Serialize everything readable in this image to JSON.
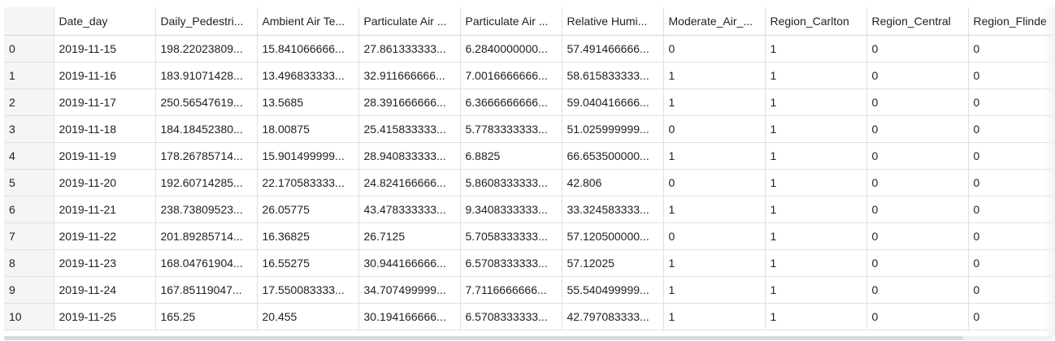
{
  "columns": [
    "",
    "Date_day",
    "Daily_Pedestri...",
    "Ambient Air Te...",
    "Particulate Air ...",
    "Particulate Air ...",
    "Relative Humi...",
    "Moderate_Air_...",
    "Region_Carlton",
    "Region_Central",
    "Region_Flinde"
  ],
  "rows": [
    [
      "0",
      "2019-11-15",
      "198.22023809...",
      "15.841066666...",
      "27.861333333...",
      "6.2840000000...",
      "57.491466666...",
      "0",
      "1",
      "0",
      "0"
    ],
    [
      "1",
      "2019-11-16",
      "183.91071428...",
      "13.496833333...",
      "32.911666666...",
      "7.0016666666...",
      "58.615833333...",
      "1",
      "1",
      "0",
      "0"
    ],
    [
      "2",
      "2019-11-17",
      "250.56547619...",
      "13.5685",
      "28.391666666...",
      "6.3666666666...",
      "59.040416666...",
      "1",
      "1",
      "0",
      "0"
    ],
    [
      "3",
      "2019-11-18",
      "184.18452380...",
      "18.00875",
      "25.415833333...",
      "5.7783333333...",
      "51.025999999...",
      "0",
      "1",
      "0",
      "0"
    ],
    [
      "4",
      "2019-11-19",
      "178.26785714...",
      "15.901499999...",
      "28.940833333...",
      "6.8825",
      "66.653500000...",
      "1",
      "1",
      "0",
      "0"
    ],
    [
      "5",
      "2019-11-20",
      "192.60714285...",
      "22.170583333...",
      "24.824166666...",
      "5.8608333333...",
      "42.806",
      "0",
      "1",
      "0",
      "0"
    ],
    [
      "6",
      "2019-11-21",
      "238.73809523...",
      "26.05775",
      "43.478333333...",
      "9.3408333333...",
      "33.324583333...",
      "1",
      "1",
      "0",
      "0"
    ],
    [
      "7",
      "2019-11-22",
      "201.89285714...",
      "16.36825",
      "26.7125",
      "5.7058333333...",
      "57.120500000...",
      "0",
      "1",
      "0",
      "0"
    ],
    [
      "8",
      "2019-11-23",
      "168.04761904...",
      "16.55275",
      "30.944166666...",
      "6.5708333333...",
      "57.12025",
      "1",
      "1",
      "0",
      "0"
    ],
    [
      "9",
      "2019-11-24",
      "167.85119047...",
      "17.550083333...",
      "34.707499999...",
      "7.7116666666...",
      "55.540499999...",
      "1",
      "1",
      "0",
      "0"
    ],
    [
      "10",
      "2019-11-25",
      "165.25",
      "20.455",
      "30.194166666...",
      "6.5708333333...",
      "42.797083333...",
      "1",
      "1",
      "0",
      "0"
    ]
  ]
}
